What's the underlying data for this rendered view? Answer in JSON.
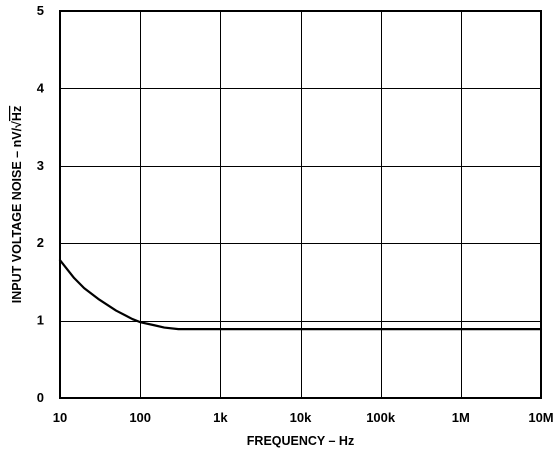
{
  "chart_data": {
    "type": "line",
    "xscale": "log",
    "xlim": [
      10,
      10000000
    ],
    "ylim": [
      0,
      5
    ],
    "grid": true,
    "xlabel": "FREQUENCY – Hz",
    "ylabel_main": "INPUT VOLTAGE NOISE – nV/",
    "ylabel_radical": "√",
    "ylabel_radicand": "Hz",
    "x_ticks": [
      {
        "value": 10,
        "label": "10"
      },
      {
        "value": 100,
        "label": "100"
      },
      {
        "value": 1000,
        "label": "1k"
      },
      {
        "value": 10000,
        "label": "10k"
      },
      {
        "value": 100000,
        "label": "100k"
      },
      {
        "value": 1000000,
        "label": "1M"
      },
      {
        "value": 10000000,
        "label": "10M"
      }
    ],
    "y_ticks": [
      {
        "value": 0,
        "label": "0"
      },
      {
        "value": 1,
        "label": "1"
      },
      {
        "value": 2,
        "label": "2"
      },
      {
        "value": 3,
        "label": "3"
      },
      {
        "value": 4,
        "label": "4"
      },
      {
        "value": 5,
        "label": "5"
      }
    ],
    "series": [
      {
        "points": [
          [
            10,
            1.78
          ],
          [
            15,
            1.55
          ],
          [
            20,
            1.42
          ],
          [
            30,
            1.28
          ],
          [
            50,
            1.13
          ],
          [
            80,
            1.02
          ],
          [
            100,
            0.98
          ],
          [
            150,
            0.94
          ],
          [
            200,
            0.91
          ],
          [
            300,
            0.89
          ],
          [
            400,
            0.89
          ],
          [
            1000,
            0.89
          ],
          [
            10000,
            0.89
          ],
          [
            100000,
            0.89
          ],
          [
            1000000,
            0.89
          ],
          [
            10000000,
            0.89
          ]
        ]
      }
    ]
  }
}
